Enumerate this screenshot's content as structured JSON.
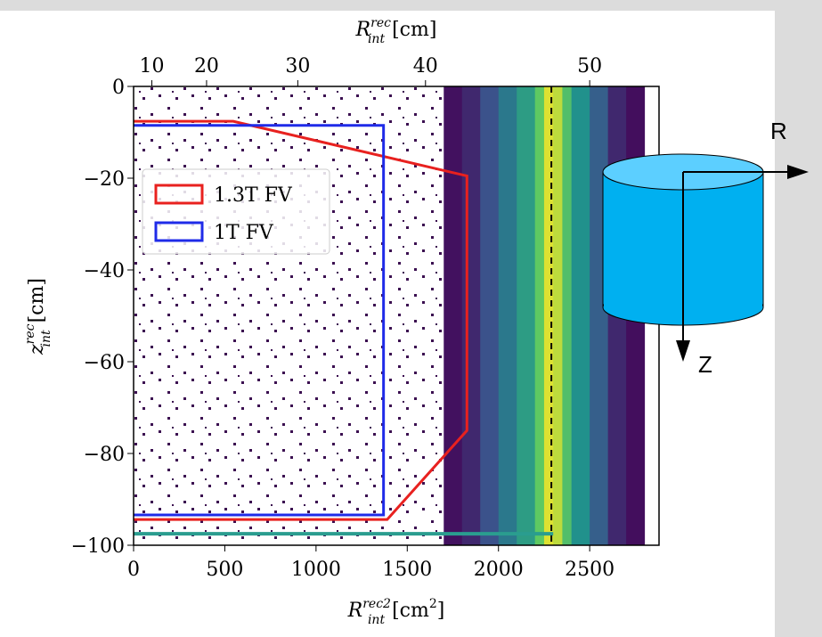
{
  "chart_data": {
    "type": "hist2d",
    "x_label": {
      "base": "R",
      "sup": "rec2",
      "sub": "int",
      "unit": "[cm",
      "unit_sup": "2",
      "unit_end": "]"
    },
    "x2_label": {
      "base": "R",
      "sup": "rec",
      "sub": "int",
      "unit": "[cm]"
    },
    "y_label": {
      "base": "z",
      "sup": "rec",
      "sub": "int",
      "unit": "[cm]"
    },
    "xlim": [
      0,
      2880
    ],
    "xticks": [
      0,
      500,
      1000,
      1500,
      2000,
      2500
    ],
    "x2ticks": [
      10,
      20,
      30,
      40,
      50
    ],
    "x2_scale": "sqrt",
    "ylim": [
      -100,
      0
    ],
    "yticks": [
      {
        "value": 0,
        "label": "0"
      },
      {
        "value": -20,
        "label": "−20"
      },
      {
        "value": -40,
        "label": "−40"
      },
      {
        "value": -60,
        "label": "−60"
      },
      {
        "value": -80,
        "label": "−80"
      },
      {
        "value": -100,
        "label": "−100"
      }
    ],
    "density": {
      "bins": [
        1700,
        1800,
        1900,
        2000,
        2100,
        2200,
        2250,
        2300,
        2350,
        2400,
        2500,
        2600,
        2700,
        2800
      ],
      "values": [
        0.05,
        0.12,
        0.25,
        0.4,
        0.55,
        0.75,
        0.95,
        0.9,
        0.7,
        0.5,
        0.3,
        0.12,
        0.04
      ]
    },
    "bottom_band": {
      "z": -97.5,
      "x": [
        0,
        2300
      ]
    },
    "vline": 2290,
    "series": [
      {
        "name": "1.3T FV",
        "color": "#e8211f",
        "x": [
          0,
          546,
          1827,
          1827,
          1390,
          0
        ],
        "y": [
          -7.6,
          -7.6,
          -19.5,
          -75,
          -94.4,
          -94.4
        ]
      },
      {
        "name": "1T FV",
        "color": "#1f2be8",
        "x": [
          0,
          1370,
          1370,
          0
        ],
        "y": [
          -8.5,
          -8.5,
          -93.4,
          -93.4
        ]
      }
    ],
    "annotations": [
      "R",
      "Z"
    ]
  }
}
